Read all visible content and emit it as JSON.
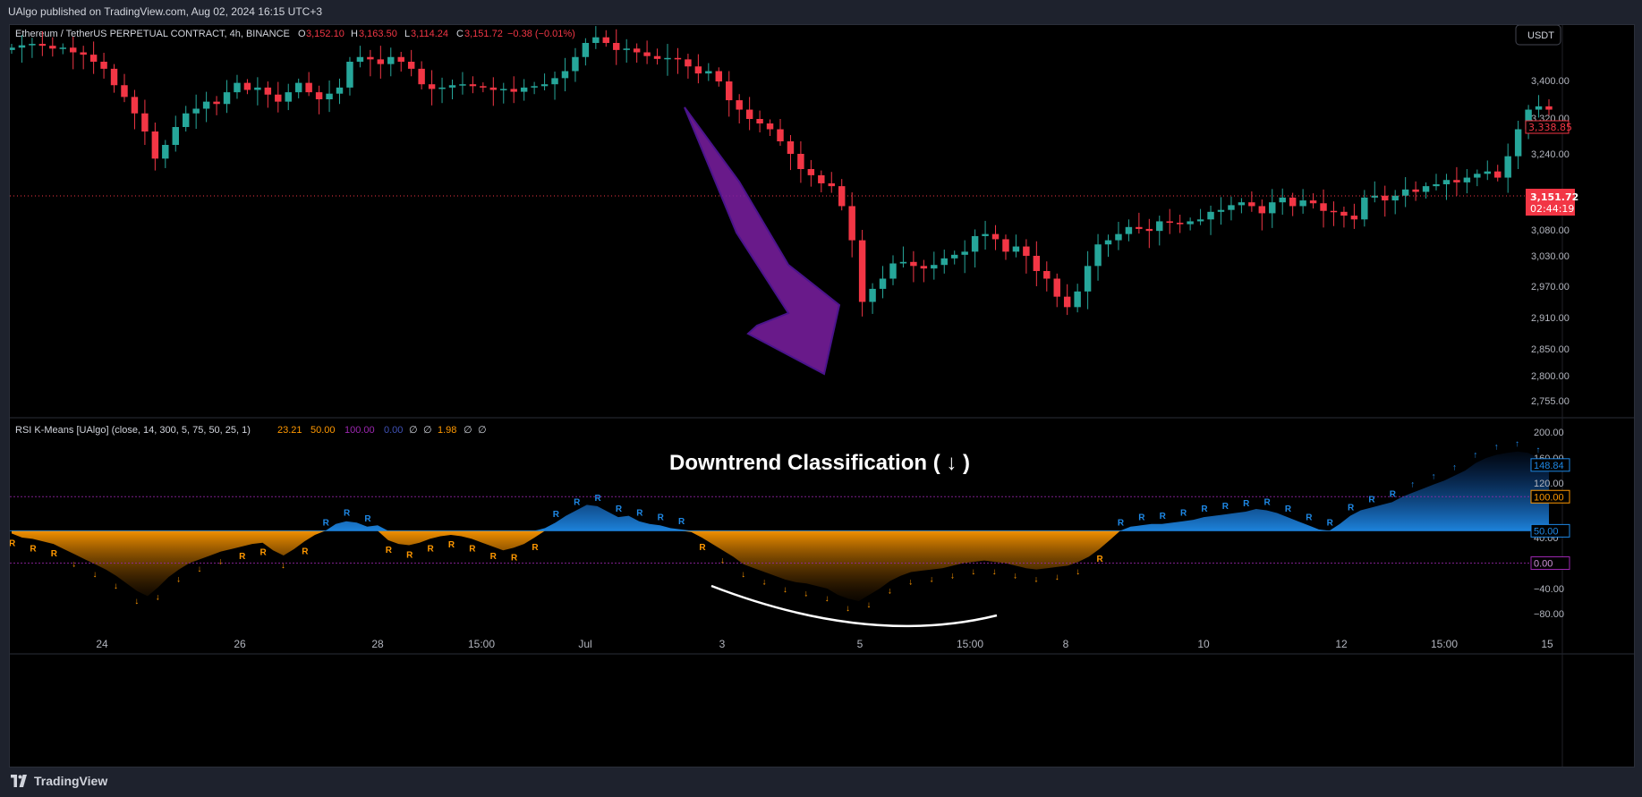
{
  "header": {
    "published": "UAlgo published on TradingView.com, Aug 02, 2024 16:15 UTC+3"
  },
  "legend": {
    "symbol": "Ethereum / TetherUS PERPETUAL CONTRACT, 4h, BINANCE",
    "open_label": "O",
    "open": "3,152.10",
    "high_label": "H",
    "high": "3,163.50",
    "low_label": "L",
    "low": "3,114.24",
    "close_label": "C",
    "close": "3,151.72",
    "change": "−0.38 (−0.01%)"
  },
  "currency_button": "USDT",
  "indicator_legend": {
    "name": "RSI K-Means [UAlgo] (close, 14, 300, 5, 75, 50, 25, 1)",
    "v1": "23.21",
    "v2": "50.00",
    "v3": "100.00",
    "v4": "0.00",
    "v5": "∅",
    "v6": "∅",
    "v7": "1.98",
    "v8": "∅",
    "v9": "∅"
  },
  "annotation": "Downtrend Classification ( ↓ )",
  "footer_brand": "TradingView",
  "colors": {
    "up": "#26a69a",
    "down": "#f23645",
    "arrow": "#8e24aa",
    "bull_fill": "#1e88e5",
    "bear_fill": "#ff9800",
    "bg": "#000000"
  },
  "chart_data": [
    {
      "type": "candlestick",
      "title": "Ethereum / TetherUS PERPETUAL CONTRACT, 4h, BINANCE",
      "y_axis_ticks": [
        3400,
        3320,
        3240,
        3080,
        3030,
        2970,
        2910,
        2850,
        2800,
        2755
      ],
      "y_axis_tick_labels": [
        "3,400.00",
        "3,320.00",
        "3,240.00",
        "3,080.00",
        "3,030.00",
        "2,970.00",
        "2,910.00",
        "2,850.00",
        "2,800.00",
        "2,755.00"
      ],
      "last_price": "3,151.72",
      "countdown": "02:44:19",
      "high_marker": "3,338.85",
      "closes": [
        3470,
        3475,
        3478,
        3474,
        3468,
        3470,
        3460,
        3455,
        3440,
        3425,
        3390,
        3365,
        3330,
        3290,
        3230,
        3260,
        3300,
        3330,
        3340,
        3355,
        3350,
        3375,
        3395,
        3380,
        3385,
        3370,
        3355,
        3375,
        3395,
        3375,
        3360,
        3372,
        3385,
        3440,
        3450,
        3445,
        3435,
        3450,
        3440,
        3425,
        3392,
        3382,
        3385,
        3390,
        3392,
        3388,
        3385,
        3380,
        3382,
        3376,
        3385,
        3388,
        3392,
        3405,
        3420,
        3450,
        3480,
        3492,
        3480,
        3465,
        3468,
        3460,
        3452,
        3446,
        3448,
        3445,
        3430,
        3415,
        3420,
        3398,
        3358,
        3338,
        3318,
        3308,
        3295,
        3268,
        3240,
        3208,
        3195,
        3178,
        3172,
        3130,
        3060,
        2940,
        2965,
        2985,
        3015,
        3018,
        3010,
        3005,
        3012,
        3025,
        3032,
        3038,
        3068,
        3072,
        3062,
        3038,
        3048,
        3030,
        3000,
        2985,
        2950,
        2930,
        2960,
        3010,
        3052,
        3060,
        3072,
        3086,
        3082,
        3078,
        3098,
        3095,
        3092,
        3098,
        3102,
        3118,
        3122,
        3132,
        3138,
        3130,
        3115,
        3138,
        3148,
        3130,
        3142,
        3136,
        3120,
        3118,
        3110,
        3102,
        3148,
        3152,
        3142,
        3152,
        3165,
        3160,
        3172,
        3176,
        3185,
        3180,
        3190,
        3198,
        3203,
        3190,
        3235,
        3295,
        3338,
        3345,
        3338
      ],
      "notes": "values estimated from the price axis; candles read left to right"
    },
    {
      "type": "area",
      "title": "RSI K-Means [UAlgo] (close, 14, 300, 5, 75, 50, 25, 1)",
      "y_axis_ticks": [
        200,
        160,
        120,
        40,
        -40,
        -80
      ],
      "y_axis_tick_labels": [
        "200.00",
        "160.00",
        "120.00",
        "40.00",
        "−40.00",
        "−80.00"
      ],
      "level_labels": [
        "148.84",
        "100.00",
        "50.00",
        "0.00"
      ],
      "levels": [
        148.84,
        100,
        50,
        0
      ],
      "x_tick_labels": [
        "24",
        "26",
        "28",
        "15:00",
        "Jul",
        "3",
        "5",
        "15:00",
        "8",
        "10",
        "12",
        "15:00",
        "15"
      ],
      "series_values": [
        46,
        40,
        38,
        34,
        30,
        22,
        14,
        6,
        -2,
        -10,
        -20,
        -32,
        -44,
        -52,
        -38,
        -22,
        -10,
        0,
        6,
        12,
        18,
        22,
        26,
        30,
        32,
        20,
        12,
        22,
        34,
        44,
        50,
        60,
        64,
        62,
        56,
        58,
        36,
        30,
        28,
        32,
        38,
        42,
        44,
        42,
        38,
        32,
        26,
        20,
        24,
        30,
        40,
        54,
        62,
        72,
        80,
        88,
        86,
        78,
        70,
        72,
        64,
        60,
        58,
        54,
        52,
        48,
        40,
        30,
        20,
        10,
        -2,
        -8,
        -14,
        -20,
        -26,
        -30,
        -32,
        -36,
        -40,
        -50,
        -56,
        -60,
        -50,
        -40,
        -28,
        -20,
        -14,
        -12,
        -10,
        -8,
        -4,
        0,
        2,
        4,
        2,
        0,
        -4,
        -8,
        -10,
        -8,
        -6,
        -4,
        2,
        10,
        22,
        36,
        50,
        56,
        58,
        60,
        60,
        62,
        64,
        66,
        70,
        72,
        74,
        76,
        78,
        82,
        80,
        76,
        70,
        64,
        58,
        52,
        50,
        60,
        72,
        80,
        84,
        88,
        92,
        100,
        106,
        112,
        118,
        124,
        132,
        140,
        152,
        160,
        165,
        168,
        170,
        168,
        160,
        150
      ],
      "signal_labels": [
        "R",
        "↓",
        "↑"
      ]
    }
  ]
}
